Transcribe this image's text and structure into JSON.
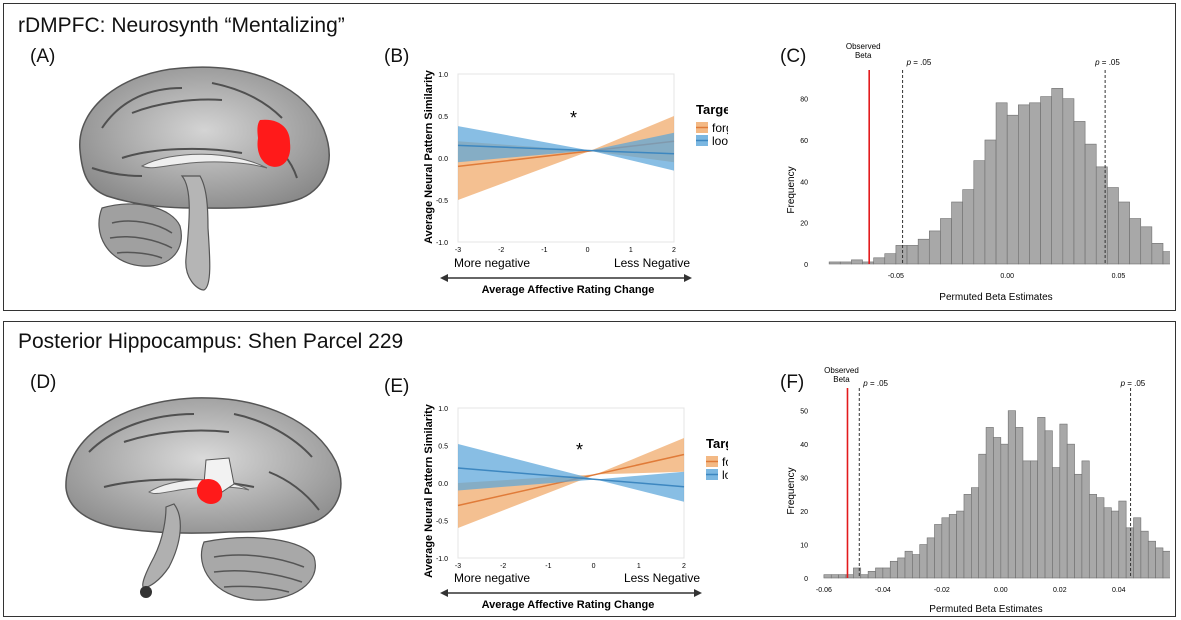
{
  "rows": [
    {
      "title": "rDMPFC: Neurosynth “Mentalizing”",
      "brain_letter": "(A)",
      "line_chart": {
        "letter": "(B)",
        "ylabel": "Average Neural Pattern Similarity",
        "xlabel": "Average Affective Rating Change",
        "left_label": "More negative",
        "right_label": "Less Negative",
        "legend_title": "Target",
        "significance": "*",
        "y_ticks": [
          "1.0",
          "0.5",
          "0.0",
          "-0.5",
          "-1.0"
        ],
        "x_ticks": [
          "-3",
          "-2",
          "-1",
          "0",
          "1",
          "2"
        ]
      },
      "histogram": {
        "letter": "(C)",
        "observed_label_1": "Observed",
        "observed_label_2": "Beta",
        "p_label_left_italic": "p",
        "p_label_left_val": " = .05",
        "p_label_right_italic": "p",
        "p_label_right_val": " = .05",
        "ylabel": "Frequency",
        "xlabel": "Permuted Beta Estimates",
        "y_ticks": [
          "80",
          "60",
          "40",
          "20",
          "0"
        ],
        "x_ticks": [
          "-0.05",
          "0.00",
          "0.05"
        ]
      }
    },
    {
      "title": "Posterior Hippocampus: Shen Parcel 229",
      "brain_letter": "(D)",
      "line_chart": {
        "letter": "(E)",
        "ylabel": "Average Neural Pattern Similarity",
        "xlabel": "Average Affective Rating Change",
        "left_label": "More negative",
        "right_label": "Less Negative",
        "legend_title": "Target",
        "significance": "*",
        "y_ticks": [
          "1.0",
          "0.5",
          "0.0",
          "-0.5",
          "-1.0"
        ],
        "x_ticks": [
          "-3",
          "-2",
          "-1",
          "0",
          "1",
          "2"
        ]
      },
      "histogram": {
        "letter": "(F)",
        "observed_label_1": "Observed",
        "observed_label_2": "Beta",
        "p_label_left_italic": "p",
        "p_label_left_val": " = .05",
        "p_label_right_italic": "p",
        "p_label_right_val": " = .05",
        "ylabel": "Frequency",
        "xlabel": "Permuted Beta Estimates",
        "y_ticks": [
          "50",
          "40",
          "30",
          "20",
          "10",
          "0"
        ],
        "x_ticks": [
          "-0.06",
          "-0.04",
          "-0.02",
          "0.00",
          "0.02",
          "0.04"
        ]
      }
    }
  ],
  "colors": {
    "forgive": "#e07b39",
    "forgive_band": "#f0a866",
    "look": "#3d87c0",
    "look_band": "#5aa5d9",
    "observed": "#e31a1c",
    "bars": "#a8a8a8",
    "activation": "#ff1a1a"
  },
  "chart_data": [
    {
      "type": "line",
      "panel": "(B)",
      "xlabel": "Average Affective Rating Change",
      "ylabel": "Average Neural Pattern Similarity",
      "xlim": [
        -3,
        2
      ],
      "ylim": [
        -1.0,
        1.0
      ],
      "series": [
        {
          "name": "forgive",
          "x": [
            -3,
            2
          ],
          "y": [
            -0.1,
            0.2
          ],
          "ci_lower": [
            -0.5,
            -0.05
          ],
          "ci_upper": [
            0.2,
            0.5
          ]
        },
        {
          "name": "look",
          "x": [
            -3,
            2
          ],
          "y": [
            0.15,
            0.05
          ],
          "ci_lower": [
            -0.05,
            -0.15
          ],
          "ci_upper": [
            0.38,
            0.3
          ]
        }
      ]
    },
    {
      "type": "bar",
      "panel": "(C)",
      "xlabel": "Permuted Beta Estimates",
      "ylabel": "Frequency",
      "ylim": [
        0,
        90
      ],
      "xlim": [
        -0.085,
        0.07
      ],
      "bin_start": -0.08,
      "bin_width": 0.005,
      "values": [
        1,
        1,
        2,
        1,
        3,
        5,
        9,
        9,
        12,
        16,
        22,
        30,
        36,
        50,
        60,
        78,
        72,
        77,
        78,
        81,
        85,
        80,
        69,
        58,
        47,
        37,
        30,
        22,
        18,
        10,
        6,
        5,
        3,
        2,
        1
      ],
      "observed_beta": -0.062,
      "p05_lines": [
        -0.047,
        0.044
      ]
    },
    {
      "type": "line",
      "panel": "(E)",
      "xlabel": "Average Affective Rating Change",
      "ylabel": "Average Neural Pattern Similarity",
      "xlim": [
        -3,
        2
      ],
      "ylim": [
        -1.0,
        1.0
      ],
      "series": [
        {
          "name": "forgive",
          "x": [
            -3,
            2
          ],
          "y": [
            -0.3,
            0.38
          ],
          "ci_lower": [
            -0.6,
            0.15
          ],
          "ci_upper": [
            0.0,
            0.6
          ]
        },
        {
          "name": "look",
          "x": [
            -3,
            2
          ],
          "y": [
            0.2,
            -0.05
          ],
          "ci_lower": [
            -0.1,
            -0.25
          ],
          "ci_upper": [
            0.52,
            0.15
          ]
        }
      ]
    },
    {
      "type": "bar",
      "panel": "(F)",
      "xlabel": "Permuted Beta Estimates",
      "ylabel": "Frequency",
      "ylim": [
        0,
        52
      ],
      "xlim": [
        -0.062,
        0.055
      ],
      "bin_start": -0.06,
      "bin_width": 0.0025,
      "values": [
        1,
        1,
        1,
        1,
        3,
        1,
        2,
        3,
        3,
        5,
        6,
        8,
        7,
        10,
        12,
        16,
        18,
        19,
        20,
        25,
        27,
        37,
        45,
        42,
        40,
        50,
        45,
        35,
        35,
        48,
        44,
        33,
        46,
        40,
        31,
        35,
        25,
        24,
        21,
        20,
        23,
        15,
        18,
        14,
        11,
        9,
        8,
        5,
        5,
        2,
        1,
        1,
        2,
        1,
        1
      ],
      "observed_beta": -0.052,
      "p05_lines": [
        -0.048,
        0.044
      ]
    }
  ]
}
